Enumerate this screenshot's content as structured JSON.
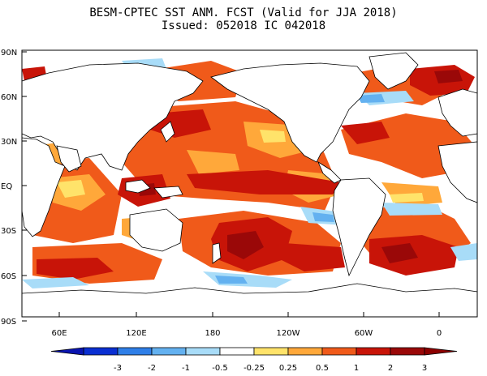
{
  "header": {
    "title_line1": "BESM-CPTEC SST ANM. FCST  (Valid for JJA 2018)",
    "title_line2": "Issued:  052018 IC 042018"
  },
  "map": {
    "lat_labels": [
      "90N",
      "60N",
      "30N",
      "EQ",
      "30S",
      "60S",
      "90S"
    ],
    "lon_labels": [
      "60E",
      "120E",
      "180",
      "120W",
      "60W",
      "0"
    ],
    "projection": "Pacific-centered cylindrical, 30E to 30E"
  },
  "colorbar": {
    "labels": [
      "-3",
      "-2",
      "-1",
      "-0.5",
      "-0.25",
      "0.25",
      "0.5",
      "1",
      "2",
      "3"
    ],
    "colors": [
      "#0a2fd2",
      "#2f7fe8",
      "#63b1f0",
      "#a8dcf8",
      "#ffffff",
      "#ffe36a",
      "#ffa83a",
      "#f05a1a",
      "#c81408",
      "#9a0808"
    ],
    "arrow_colors": [
      "#0a14b0",
      "#8c0000"
    ]
  },
  "colors": {
    "ocean_neutral": "#ffffff",
    "land": "#ffffff",
    "coast": "#000000"
  }
}
